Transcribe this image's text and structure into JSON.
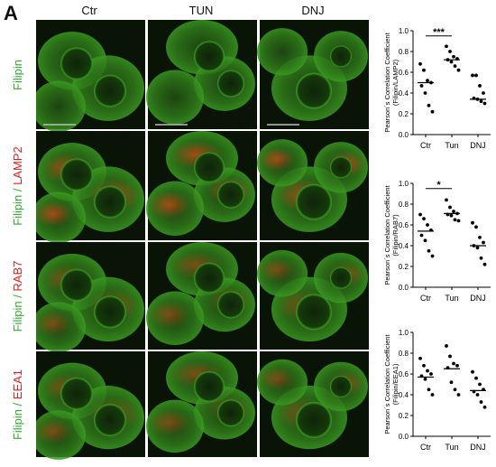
{
  "panel_label": "A",
  "columns": [
    "Ctr",
    "TUN",
    "DNJ"
  ],
  "rows": [
    {
      "parts": [
        {
          "text": "Filipin",
          "color": "green"
        }
      ]
    },
    {
      "parts": [
        {
          "text": "Filipin",
          "color": "green"
        },
        {
          "text": " / ",
          "color": "green"
        },
        {
          "text": "LAMP2",
          "color": "red"
        }
      ]
    },
    {
      "parts": [
        {
          "text": "Filipin",
          "color": "green"
        },
        {
          "text": " / ",
          "color": "green"
        },
        {
          "text": "RAB7",
          "color": "red"
        }
      ]
    },
    {
      "parts": [
        {
          "text": "Filipin",
          "color": "green"
        },
        {
          "text": " / ",
          "color": "green"
        },
        {
          "text": "EEA1",
          "color": "red"
        }
      ]
    }
  ],
  "colors": {
    "filipin": "#2cae2c",
    "marker": "#e02020"
  },
  "chart_data": [
    {
      "type": "scatter",
      "ylabel_line1": "Pearson´s Correlation Coefficient",
      "ylabel_line2": "(Filipin/LAMP2)",
      "categories": [
        "Ctr",
        "Tun",
        "DNJ"
      ],
      "ylim": [
        0,
        1.0
      ],
      "yticks": [
        "0.0",
        "0.2",
        "0.4",
        "0.6",
        "0.8",
        "1.0"
      ],
      "significance": "***",
      "points": [
        [
          0.68,
          0.62,
          0.52,
          0.5,
          0.47,
          0.4,
          0.28,
          0.22
        ],
        [
          0.85,
          0.8,
          0.75,
          0.73,
          0.72,
          0.7,
          0.66,
          0.62
        ],
        [
          0.57,
          0.57,
          0.47,
          0.4,
          0.35,
          0.34,
          0.32,
          0.3
        ]
      ],
      "medians": [
        0.5,
        0.72,
        0.34
      ]
    },
    {
      "type": "scatter",
      "ylabel_line1": "Pearson´s Correlation Coefficient",
      "ylabel_line2": "(Filipin/RAB7)",
      "categories": [
        "Ctr",
        "Tun",
        "DNJ"
      ],
      "ylim": [
        0,
        1.0
      ],
      "yticks": [
        "0.0",
        "0.2",
        "0.4",
        "0.6",
        "0.8",
        "1.0"
      ],
      "significance": "*",
      "points": [
        [
          0.7,
          0.66,
          0.6,
          0.55,
          0.5,
          0.45,
          0.35,
          0.3
        ],
        [
          0.84,
          0.77,
          0.73,
          0.71,
          0.7,
          0.69,
          0.65,
          0.64
        ],
        [
          0.62,
          0.58,
          0.48,
          0.43,
          0.4,
          0.38,
          0.28,
          0.22
        ]
      ],
      "medians": [
        0.54,
        0.71,
        0.4
      ]
    },
    {
      "type": "scatter",
      "ylabel_line1": "Pearson´s Correlation Coefficient",
      "ylabel_line2": "(Filipin/EEA1)",
      "categories": [
        "Ctr",
        "Tun",
        "DNJ"
      ],
      "ylim": [
        0,
        1.0
      ],
      "yticks": [
        "0.0",
        "0.2",
        "0.4",
        "0.6",
        "0.8",
        "1.0"
      ],
      "significance": "",
      "points": [
        [
          0.75,
          0.68,
          0.63,
          0.6,
          0.58,
          0.55,
          0.45,
          0.4
        ],
        [
          0.87,
          0.77,
          0.7,
          0.68,
          0.66,
          0.52,
          0.45,
          0.4
        ],
        [
          0.62,
          0.56,
          0.5,
          0.45,
          0.43,
          0.4,
          0.33,
          0.28
        ]
      ],
      "medians": [
        0.57,
        0.65,
        0.44
      ]
    }
  ]
}
